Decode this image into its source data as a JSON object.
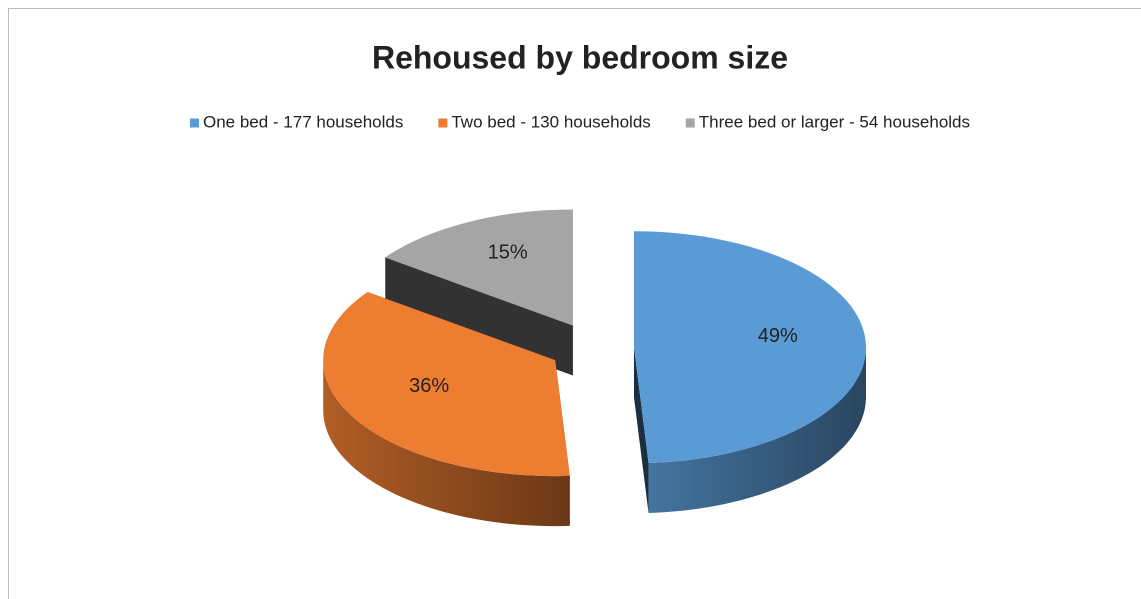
{
  "chart_data": {
    "type": "pie",
    "title": "Rehoused by bedroom size",
    "categories": [
      "One bed - 177 households",
      "Two bed - 130 households",
      "Three bed or larger - 54 households"
    ],
    "values": [
      49,
      36,
      15
    ],
    "value_labels": [
      "49%",
      "36%",
      "15%"
    ],
    "colors": [
      "#5b9bd5",
      "#ed7d31",
      "#a5a5a5"
    ],
    "legend": "top"
  }
}
